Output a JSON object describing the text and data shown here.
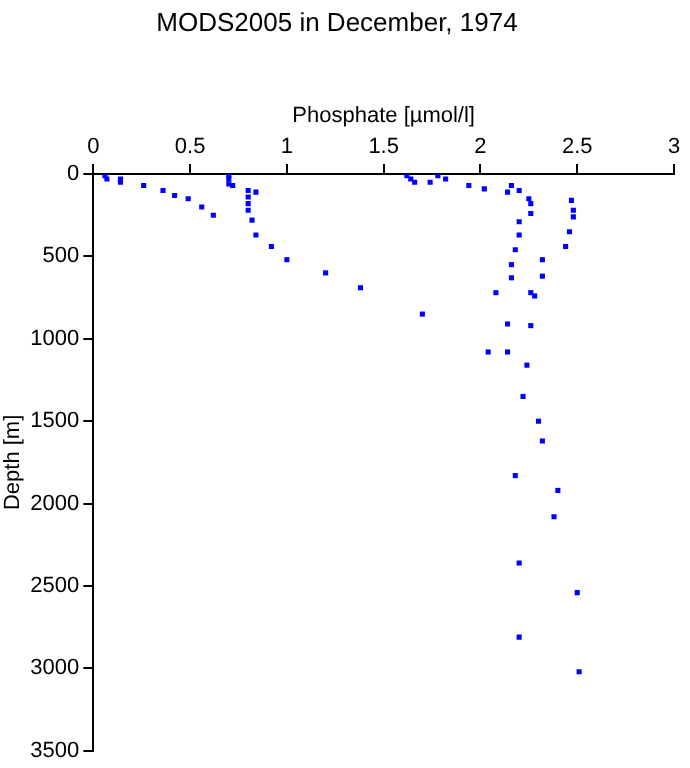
{
  "chart_data": {
    "type": "scatter",
    "title": "MODS2005 in December, 1974",
    "xlabel": "Phosphate [µmol/l]",
    "ylabel": "Depth [m]",
    "x": [
      0.06,
      0.07,
      0.14,
      0.14,
      0.26,
      0.36,
      0.42,
      0.49,
      0.56,
      0.62,
      0.7,
      0.7,
      0.7,
      0.72,
      0.8,
      0.8,
      0.8,
      0.8,
      0.82,
      0.84,
      0.84,
      0.92,
      1.0,
      1.2,
      1.38,
      1.7,
      1.62,
      1.64,
      1.66,
      1.74,
      1.78,
      1.82,
      1.94,
      2.02,
      2.16,
      2.14,
      2.2,
      2.25,
      2.26,
      2.26,
      2.2,
      2.2,
      2.18,
      2.16,
      2.16,
      2.08,
      2.26,
      2.28,
      2.14,
      2.26,
      2.04,
      2.14,
      2.24,
      2.47,
      2.48,
      2.48,
      2.46,
      2.44,
      2.32,
      2.32,
      2.22,
      2.3,
      2.32,
      2.18,
      2.4,
      2.38,
      2.2,
      2.5,
      2.2,
      2.51
    ],
    "values": [
      10,
      30,
      30,
      50,
      70,
      100,
      130,
      150,
      200,
      250,
      10,
      30,
      60,
      70,
      100,
      140,
      180,
      220,
      280,
      110,
      370,
      440,
      520,
      600,
      690,
      850,
      10,
      30,
      50,
      50,
      10,
      30,
      70,
      90,
      70,
      110,
      100,
      150,
      180,
      240,
      290,
      370,
      460,
      550,
      630,
      720,
      720,
      740,
      910,
      920,
      1080,
      1080,
      1160,
      160,
      220,
      260,
      350,
      440,
      520,
      620,
      1350,
      1500,
      1620,
      1830,
      1920,
      2080,
      2360,
      2540,
      2810,
      3020
    ],
    "color": "#0000ff",
    "marker": "square",
    "xlim": [
      0,
      3
    ],
    "xticks": [
      0,
      {
        "value": 0.5,
        "label": "0.5"
      },
      1,
      {
        "value": 1.5,
        "label": "1.5"
      },
      2,
      {
        "value": 2.5,
        "label": "2.5"
      },
      3
    ],
    "ylim": [
      3500,
      0
    ],
    "yticks": [
      0,
      500,
      1000,
      1500,
      2000,
      2500,
      3000,
      3500
    ],
    "grid": false,
    "legend": false
  }
}
